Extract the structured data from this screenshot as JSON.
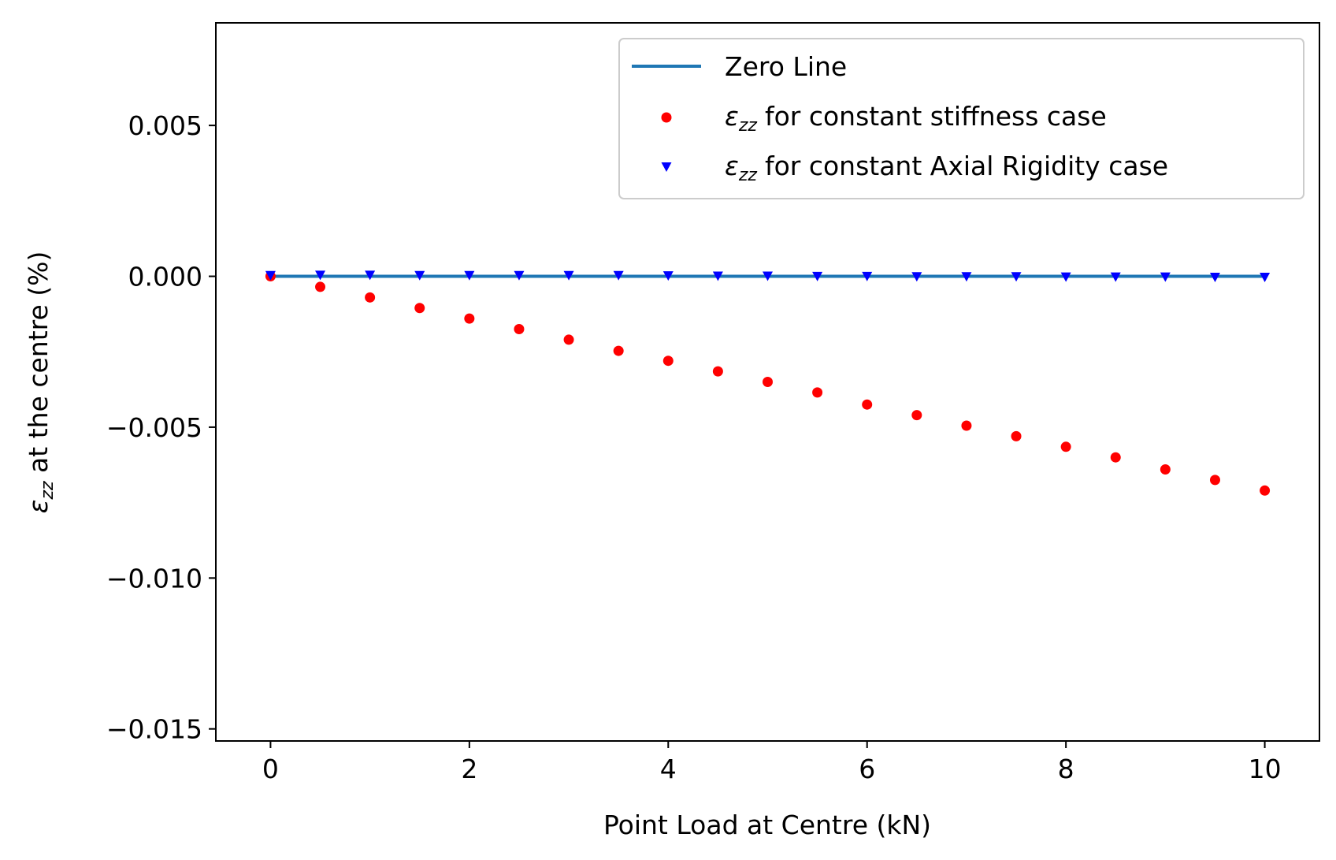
{
  "chart_data": {
    "type": "scatter",
    "xlabel": "Point Load at Centre (kN)",
    "ylabel": {
      "sym": "ε",
      "sub": "zz",
      "rest": " at the centre (%)"
    },
    "xlim": [
      -0.55,
      10.55
    ],
    "ylim": [
      -0.0154,
      0.0084
    ],
    "xticks": [
      0,
      2,
      4,
      6,
      8,
      10
    ],
    "xtick_labels": [
      "0",
      "2",
      "4",
      "6",
      "8",
      "10"
    ],
    "yticks": [
      0.005,
      0.0,
      -0.005,
      -0.01,
      -0.015
    ],
    "ytick_labels": [
      "0.005",
      "0.000",
      "−0.005",
      "−0.010",
      "−0.015"
    ],
    "grid": false,
    "legend_position": "top-right",
    "series": [
      {
        "name": "Zero Line",
        "kind": "line",
        "color": "#1f77b4",
        "x": [
          0,
          10
        ],
        "y": [
          0,
          0
        ]
      },
      {
        "name": "for constant stiffness case",
        "name_prefix": {
          "sym": "ε",
          "sub": "zz"
        },
        "kind": "points",
        "marker": "circle",
        "color": "#ff0000",
        "x": [
          0,
          0.5,
          1,
          1.5,
          2,
          2.5,
          3,
          3.5,
          4,
          4.5,
          5,
          5.5,
          6,
          6.5,
          7,
          7.5,
          8,
          8.5,
          9,
          9.5,
          10
        ],
        "y": [
          0.0,
          -0.00035,
          -0.0007,
          -0.00105,
          -0.0014,
          -0.00175,
          -0.0021,
          -0.00247,
          -0.0028,
          -0.00315,
          -0.0035,
          -0.00385,
          -0.00425,
          -0.0046,
          -0.00495,
          -0.0053,
          -0.00565,
          -0.006,
          -0.0064,
          -0.00675,
          -0.0071
        ]
      },
      {
        "name": "for constant Axial Rigidity case",
        "name_prefix": {
          "sym": "ε",
          "sub": "zz"
        },
        "kind": "points",
        "marker": "triangle-down",
        "color": "#0000ff",
        "x": [
          0,
          0.5,
          1,
          1.5,
          2,
          2.5,
          3,
          3.5,
          4,
          4.5,
          5,
          5.5,
          6,
          6.5,
          7,
          7.5,
          8,
          8.5,
          9,
          9.5,
          10
        ],
        "y": [
          2e-05,
          3e-05,
          3e-05,
          2e-05,
          2e-05,
          2e-05,
          2e-05,
          2e-05,
          1e-05,
          0.0,
          0.0,
          -1e-05,
          -1e-05,
          -2e-05,
          -2e-05,
          -2e-05,
          -3e-05,
          -3e-05,
          -3e-05,
          -4e-05,
          -4e-05
        ]
      }
    ]
  }
}
